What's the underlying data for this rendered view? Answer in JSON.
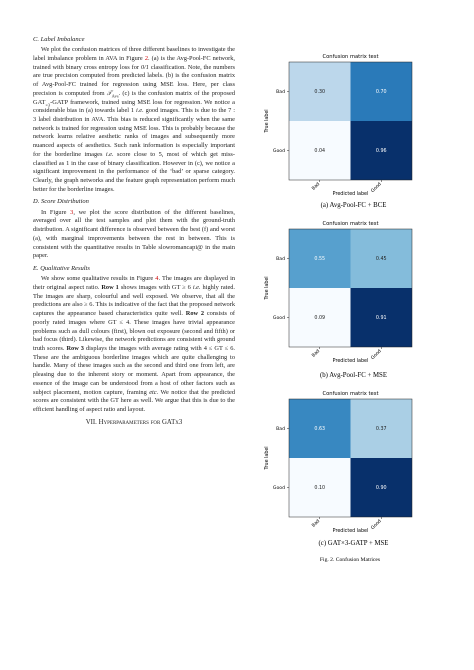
{
  "sections": [
    {
      "heading": "C. Label Imbalance",
      "runs": [
        "We plot the confusion matrices of three different baselines to investigate the label imbalance problem in AVA in Figure ",
        "2",
        ". (a) is the Avg-Pool-FC network, trained with binary cross entropy loss for ",
        "0/1",
        " classification. Note, the numbers are true precision computed from predicted labels. (b) is the confusion matrix of Avg-Pool-FC trained for regression using MSE loss. Here, per class precision is computed from ",
        "𝒯",
        "Avs",
        ". (c) is the confusion matrix of the proposed GAT",
        "×3",
        "-GATP framework, trained using MSE loss for regression. We notice a considerable bias in (a) towards label 1 ",
        "i.e.",
        " good images. This is due to the 7 : 3 label distribution in AVA. This bias is reduced significantly when the same network is trained for regression using MSE loss. This is probably because the network learns relative aesthetic ranks of images and subsequently more nuanced aspects of aesthetics. Such rank information is especially important for the borderline images ",
        "i.e.",
        " score close to 5, most of which get miss-classified as 1 in the case of binary classification. However in (c), we notice a significant improvement in the performance of the ‘bad’ or sparse category. Clearly, the graph networks and the feature graph representation perform much better for the borderline images."
      ]
    },
    {
      "heading": "D. Score Distribution",
      "runs": [
        "In Figure ",
        "3",
        ", we plot the score distribution of the different baselines, averaged over all the test samples and plot them with the ground-truth distribution. A significant difference is observed between the best (f) and worst (a), with marginal improvements between the rest in between. This is consistent with the quantitative results in Table slowromancapi@ in the main paper."
      ]
    },
    {
      "heading": "E. Qualitative Results",
      "runs": [
        "We show some qualitative results in Figure ",
        "4",
        ". The images are displayed in their original aspect ratio. ",
        "Row 1",
        " shows images with GT ≥ 6 ",
        "i.e.",
        " highly rated. The images are sharp, colourful and well exposed. We observe, that all the predictions are also ≥ 6. This is indicative of the fact that the proposed network captures the appearance based characteristics quite well. ",
        "Row 2",
        " consists of poorly rated images where GT ≤ 4. These images have trivial appearance problems such as dull colours (first), blown out exposure (second and fifth) or bad focus (third). Likewise, the network predictions are consistent with ground truth scores. ",
        "Row 3",
        " displays the images with average rating with 4 ≤ GT ≤ 6. These are the ambiguous borderline images which are quite challenging to handle. Many of these images such as the second and third one from left, are pleasing due to the inherent story or moment. Apart from appearance, the essence of the image can be understood from a host of other factors such as subject placement, motion capture, framing ",
        "etc.",
        " We notice that the predicted scores are consistent with the GT here as well. We argue that this is due to the efficient handling of aspect ratio and layout."
      ]
    }
  ],
  "next_heading": "VII. Hyperparameters for GATx3",
  "figures": [
    {
      "title": "Confusion matrix test",
      "ylabel": "True label",
      "xlabel": "Predicted label",
      "row_labels": [
        "Bad",
        "Good"
      ],
      "col_labels": [
        "Bad",
        "Good"
      ],
      "cells": [
        [
          0.3,
          0.7
        ],
        [
          0.04,
          0.96
        ]
      ],
      "cell_labels": [
        [
          "0.30",
          "0.70"
        ],
        [
          "0.04",
          "0.96"
        ]
      ],
      "caption": "(a) Avg-Pool-FC + BCE"
    },
    {
      "title": "Confusion matrix test",
      "ylabel": "True label",
      "xlabel": "Predicted label",
      "row_labels": [
        "Bad",
        "Good"
      ],
      "col_labels": [
        "Bad",
        "Good"
      ],
      "cells": [
        [
          0.55,
          0.45
        ],
        [
          0.09,
          0.91
        ]
      ],
      "cell_labels": [
        [
          "0.55",
          "0.45"
        ],
        [
          "0.09",
          "0.91"
        ]
      ],
      "caption": "(b) Avg-Pool-FC + MSE"
    },
    {
      "title": "Confusion matrix test",
      "ylabel": "True label",
      "xlabel": "Predicted label",
      "row_labels": [
        "Bad",
        "Good"
      ],
      "col_labels": [
        "Bad",
        "Good"
      ],
      "cells": [
        [
          0.63,
          0.37
        ],
        [
          0.1,
          0.9
        ]
      ],
      "cell_labels": [
        [
          "0.63",
          "0.37"
        ],
        [
          "0.10",
          "0.90"
        ]
      ],
      "caption": "(c) GAT×3-GATP + MSE"
    }
  ],
  "figure_caption": "Fig. 2.  Confusion Matrices"
}
